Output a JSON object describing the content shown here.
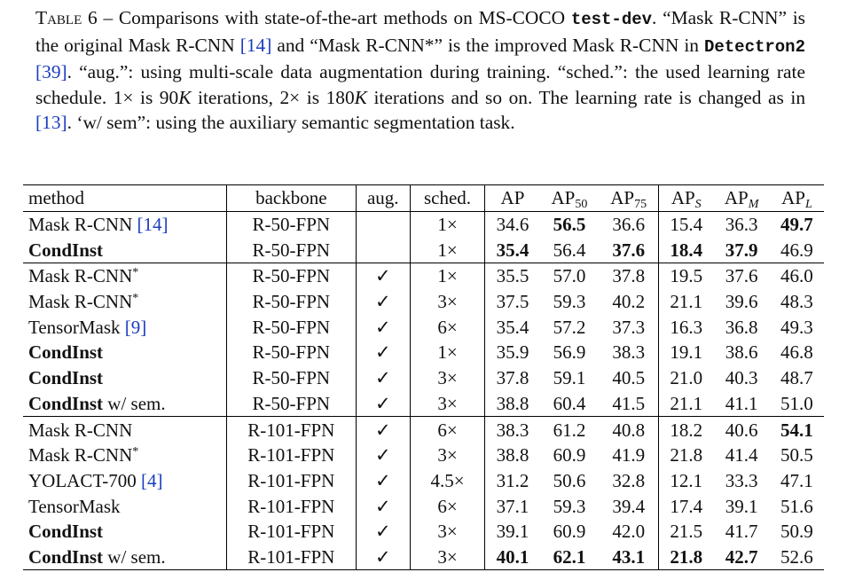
{
  "caption": {
    "label": "Table 6",
    "dash": " – ",
    "text_before_tt": "Comparisons with state-of-the-art methods on MS-COCO ",
    "dataset_split": "test-dev",
    "text_after_tt": ". “Mask R-CNN” is the original Mask R-CNN ",
    "cite_14": "[14]",
    "text_2": " and “Mask R-CNN*” is the improved Mask R-CNN in ",
    "framework": "Detectron2",
    "text_3": " ",
    "cite_39": "[39]",
    "text_4": ". “aug.”: using multi-scale data augmentation during training. “sched.”: the used learning rate schedule. 1× is 90",
    "k1": "K",
    "text_5": " iterations, 2× is 180",
    "k2": "K",
    "text_6": " iterations and so on. The learning rate is changed as in ",
    "cite_13": "[13]",
    "text_7": ". ‘w/ sem”: using the auxiliary semantic segmentation task."
  },
  "table": {
    "headers": {
      "method": "method",
      "backbone": "backbone",
      "aug": "aug.",
      "sched": "sched.",
      "ap": "AP",
      "ap50_base": "AP",
      "ap50_sub": "50",
      "ap75_base": "AP",
      "ap75_sub": "75",
      "aps_base": "AP",
      "aps_sub": "S",
      "apm_base": "AP",
      "apm_sub": "M",
      "apl_base": "AP",
      "apl_sub": "L"
    },
    "rows": [
      {
        "method": "Mask R-CNN ",
        "cite": "[14]",
        "star": "",
        "bold_method": false,
        "suffix": "",
        "backbone": "R-50-FPN",
        "aug": "",
        "sched": "1×",
        "ap": "34.6",
        "ap50": "56.5",
        "ap75": "36.6",
        "aps": "15.4",
        "apm": "36.3",
        "apl": "49.7",
        "bold": [
          "ap50",
          "apl"
        ]
      },
      {
        "method": "CondInst",
        "cite": "",
        "star": "",
        "bold_method": true,
        "suffix": "",
        "backbone": "R-50-FPN",
        "aug": "",
        "sched": "1×",
        "ap": "35.4",
        "ap50": "56.4",
        "ap75": "37.6",
        "aps": "18.4",
        "apm": "37.9",
        "apl": "46.9",
        "bold": [
          "ap",
          "ap75",
          "aps",
          "apm"
        ]
      },
      {
        "method": "Mask R-CNN",
        "cite": "",
        "star": "*",
        "bold_method": false,
        "suffix": "",
        "backbone": "R-50-FPN",
        "aug": "✓",
        "sched": "1×",
        "ap": "35.5",
        "ap50": "57.0",
        "ap75": "37.8",
        "aps": "19.5",
        "apm": "37.6",
        "apl": "46.0",
        "bold": []
      },
      {
        "method": "Mask R-CNN",
        "cite": "",
        "star": "*",
        "bold_method": false,
        "suffix": "",
        "backbone": "R-50-FPN",
        "aug": "✓",
        "sched": "3×",
        "ap": "37.5",
        "ap50": "59.3",
        "ap75": "40.2",
        "aps": "21.1",
        "apm": "39.6",
        "apl": "48.3",
        "bold": []
      },
      {
        "method": "TensorMask ",
        "cite": "[9]",
        "star": "",
        "bold_method": false,
        "suffix": "",
        "backbone": "R-50-FPN",
        "aug": "✓",
        "sched": "6×",
        "ap": "35.4",
        "ap50": "57.2",
        "ap75": "37.3",
        "aps": "16.3",
        "apm": "36.8",
        "apl": "49.3",
        "bold": []
      },
      {
        "method": "CondInst",
        "cite": "",
        "star": "",
        "bold_method": true,
        "suffix": "",
        "backbone": "R-50-FPN",
        "aug": "✓",
        "sched": "1×",
        "ap": "35.9",
        "ap50": "56.9",
        "ap75": "38.3",
        "aps": "19.1",
        "apm": "38.6",
        "apl": "46.8",
        "bold": []
      },
      {
        "method": "CondInst",
        "cite": "",
        "star": "",
        "bold_method": true,
        "suffix": "",
        "backbone": "R-50-FPN",
        "aug": "✓",
        "sched": "3×",
        "ap": "37.8",
        "ap50": "59.1",
        "ap75": "40.5",
        "aps": "21.0",
        "apm": "40.3",
        "apl": "48.7",
        "bold": []
      },
      {
        "method": "CondInst",
        "cite": "",
        "star": "",
        "bold_method": true,
        "suffix": " w/ sem.",
        "backbone": "R-50-FPN",
        "aug": "✓",
        "sched": "3×",
        "ap": "38.8",
        "ap50": "60.4",
        "ap75": "41.5",
        "aps": "21.1",
        "apm": "41.1",
        "apl": "51.0",
        "bold": []
      },
      {
        "method": "Mask R-CNN",
        "cite": "",
        "star": "",
        "bold_method": false,
        "suffix": "",
        "backbone": "R-101-FPN",
        "aug": "✓",
        "sched": "6×",
        "ap": "38.3",
        "ap50": "61.2",
        "ap75": "40.8",
        "aps": "18.2",
        "apm": "40.6",
        "apl": "54.1",
        "bold": [
          "apl"
        ]
      },
      {
        "method": "Mask R-CNN",
        "cite": "",
        "star": "*",
        "bold_method": false,
        "suffix": "",
        "backbone": "R-101-FPN",
        "aug": "✓",
        "sched": "3×",
        "ap": "38.8",
        "ap50": "60.9",
        "ap75": "41.9",
        "aps": "21.8",
        "apm": "41.4",
        "apl": "50.5",
        "bold": []
      },
      {
        "method": "YOLACT-700 ",
        "cite": "[4]",
        "star": "",
        "bold_method": false,
        "suffix": "",
        "backbone": "R-101-FPN",
        "aug": "✓",
        "sched": "4.5×",
        "ap": "31.2",
        "ap50": "50.6",
        "ap75": "32.8",
        "aps": "12.1",
        "apm": "33.3",
        "apl": "47.1",
        "bold": []
      },
      {
        "method": "TensorMask",
        "cite": "",
        "star": "",
        "bold_method": false,
        "suffix": "",
        "backbone": "R-101-FPN",
        "aug": "✓",
        "sched": "6×",
        "ap": "37.1",
        "ap50": "59.3",
        "ap75": "39.4",
        "aps": "17.4",
        "apm": "39.1",
        "apl": "51.6",
        "bold": []
      },
      {
        "method": "CondInst",
        "cite": "",
        "star": "",
        "bold_method": true,
        "suffix": "",
        "backbone": "R-101-FPN",
        "aug": "✓",
        "sched": "3×",
        "ap": "39.1",
        "ap50": "60.9",
        "ap75": "42.0",
        "aps": "21.5",
        "apm": "41.7",
        "apl": "50.9",
        "bold": []
      },
      {
        "method": "CondInst",
        "cite": "",
        "star": "",
        "bold_method": true,
        "suffix": " w/ sem.",
        "backbone": "R-101-FPN",
        "aug": "✓",
        "sched": "3×",
        "ap": "40.1",
        "ap50": "62.1",
        "ap75": "43.1",
        "aps": "21.8",
        "apm": "42.7",
        "apl": "52.6",
        "bold": [
          "ap",
          "ap50",
          "ap75",
          "aps",
          "apm"
        ]
      }
    ]
  },
  "colors": {
    "citation": "#1a3dbf",
    "text": "#111111",
    "rule": "#000000"
  }
}
